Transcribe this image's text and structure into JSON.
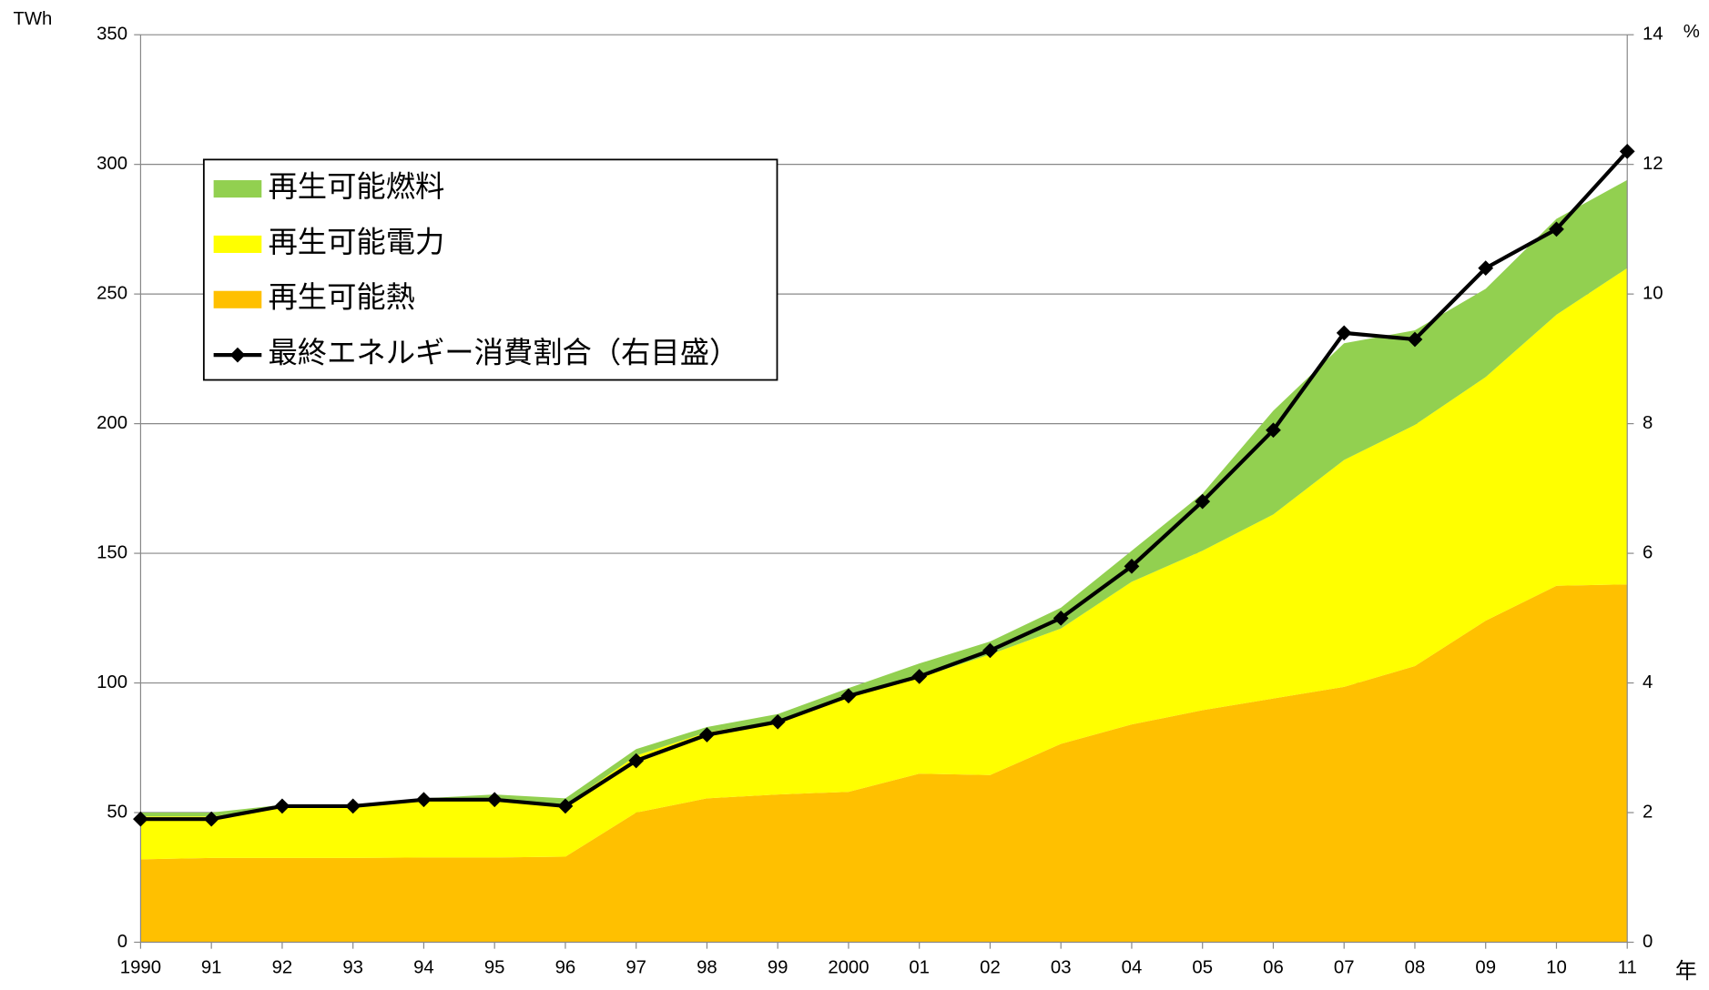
{
  "chart_data": {
    "type": "stacked-area-line",
    "y_label": "TWh",
    "y2_label": "%",
    "x_label": "年",
    "categories": [
      "1990",
      "91",
      "92",
      "93",
      "94",
      "95",
      "96",
      "97",
      "98",
      "99",
      "2000",
      "01",
      "02",
      "03",
      "04",
      "05",
      "06",
      "07",
      "08",
      "09",
      "10",
      "11"
    ],
    "series": [
      {
        "name": "再生可能熱",
        "color": "#ffc000",
        "values": [
          32,
          32.5,
          32.5,
          32.5,
          32.7,
          32.7,
          33,
          50,
          55.5,
          57,
          58,
          65,
          64.5,
          76.5,
          84,
          89.5,
          94,
          98.5,
          106.5,
          124,
          137.5,
          138
        ]
      },
      {
        "name": "再生可能電力",
        "color": "#ffff00",
        "values": [
          16.5,
          16,
          19.5,
          19.5,
          21.8,
          22.3,
          20,
          22,
          25.5,
          28.5,
          37,
          37,
          46.5,
          44.5,
          55,
          61.5,
          71,
          87.5,
          93,
          94,
          104.5,
          122
        ]
      },
      {
        "name": "再生可能燃料",
        "color": "#92d050",
        "values": [
          1.5,
          1.5,
          1,
          1,
          1,
          2,
          2.5,
          2.5,
          2,
          2.5,
          3,
          5.5,
          5,
          8,
          12,
          22,
          40,
          45,
          36.5,
          34,
          37,
          34
        ]
      },
      {
        "name": "最終エネルギー消費割合（右目盛）",
        "color": "#000000",
        "axis": "y2",
        "values": [
          1.9,
          1.9,
          2.1,
          2.1,
          2.2,
          2.2,
          2.1,
          2.8,
          3.2,
          3.4,
          3.8,
          4.1,
          4.5,
          5.0,
          5.8,
          6.8,
          7.9,
          9.4,
          9.3,
          10.4,
          11.0,
          12.2
        ]
      }
    ],
    "ylim": [
      0,
      350
    ],
    "yticks": [
      0,
      50,
      100,
      150,
      200,
      250,
      300,
      350
    ],
    "y2lim": [
      0,
      14
    ],
    "y2ticks": [
      0,
      2,
      4,
      6,
      8,
      10,
      12,
      14
    ],
    "grid": true
  }
}
